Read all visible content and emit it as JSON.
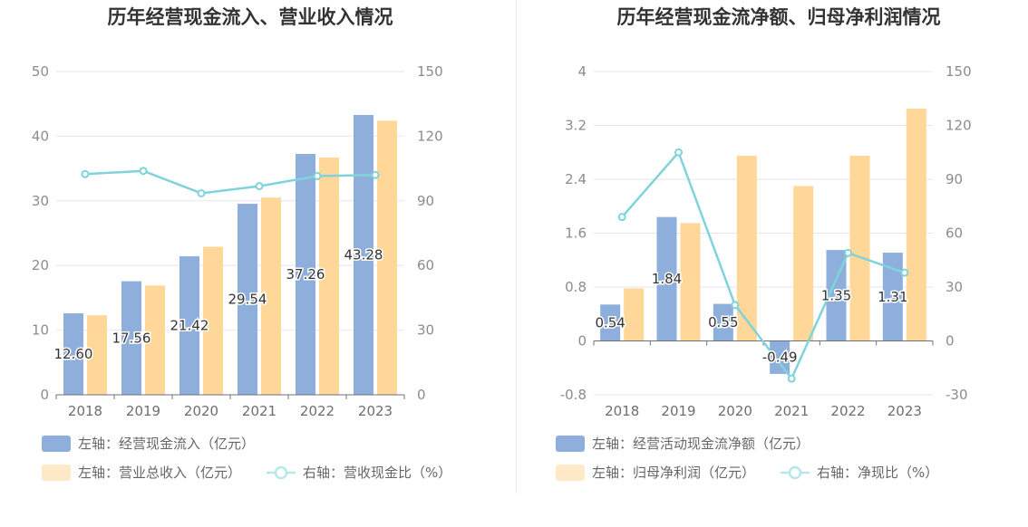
{
  "charts": [
    {
      "title": "历年经营现金流入、营业收入情况",
      "chart_data": {
        "type": "bar",
        "categories": [
          "2018",
          "2019",
          "2020",
          "2021",
          "2022",
          "2023"
        ],
        "series": [
          {
            "name": "左轴：经营现金流入（亿元）",
            "axis": "left",
            "type": "bar",
            "color": "#8eaedc",
            "values": [
              12.6,
              17.56,
              21.42,
              29.54,
              37.26,
              43.28
            ],
            "labels": [
              "12.60",
              "17.56",
              "21.42",
              "29.54",
              "37.26",
              "43.28"
            ]
          },
          {
            "name": "左轴：营业总收入（亿元）",
            "axis": "left",
            "type": "bar",
            "color": "#ffd899",
            "values": [
              12.3,
              16.9,
              22.9,
              30.5,
              36.7,
              42.4
            ]
          },
          {
            "name": "右轴：营收现金比（%）",
            "axis": "right",
            "type": "line",
            "color": "#7fd3db",
            "values": [
              102.4,
              103.9,
              93.5,
              96.8,
              101.5,
              102.0
            ]
          }
        ],
        "left_axis": {
          "min": 0,
          "max": 50,
          "ticks": [
            "0",
            "10",
            "20",
            "30",
            "40",
            "50"
          ]
        },
        "right_axis": {
          "min": 0,
          "max": 150,
          "ticks": [
            "0",
            "30",
            "60",
            "90",
            "120",
            "150"
          ]
        },
        "grid": true,
        "legend": "bottom"
      }
    },
    {
      "title": "历年经营现金流净额、归母净利润情况",
      "chart_data": {
        "type": "bar",
        "categories": [
          "2018",
          "2019",
          "2020",
          "2021",
          "2022",
          "2023"
        ],
        "series": [
          {
            "name": "左轴：经营活动现金流净额（亿元）",
            "axis": "left",
            "type": "bar",
            "color": "#8eaedc",
            "values": [
              0.54,
              1.84,
              0.55,
              -0.49,
              1.35,
              1.31
            ],
            "labels": [
              "0.54",
              "1.84",
              "0.55",
              "-0.49",
              "1.35",
              "1.31"
            ]
          },
          {
            "name": "左轴：归母净利润（亿元）",
            "axis": "left",
            "type": "bar",
            "color": "#ffd899",
            "values": [
              0.78,
              1.75,
              2.75,
              2.3,
              2.75,
              3.45
            ]
          },
          {
            "name": "右轴：净现比（%）",
            "axis": "right",
            "type": "line",
            "color": "#7fd3db",
            "values": [
              69,
              105,
              20,
              -21,
              49,
              38
            ]
          }
        ],
        "left_axis": {
          "min": -0.8,
          "max": 4,
          "ticks": [
            "-0.8",
            "0",
            "0.8",
            "1.6",
            "2.4",
            "3.2",
            "4"
          ]
        },
        "right_axis": {
          "min": -30,
          "max": 150,
          "ticks": [
            "-30",
            "0",
            "30",
            "60",
            "90",
            "120",
            "150"
          ]
        },
        "grid": true,
        "legend": "bottom"
      }
    }
  ]
}
